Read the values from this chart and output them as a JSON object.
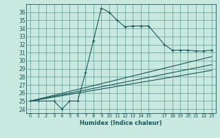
{
  "xlabel": "Humidex (Indice chaleur)",
  "bg_color": "#c8e8e0",
  "grid_color": "#5a9a90",
  "line_color": "#1a5858",
  "xlim": [
    -0.5,
    23.5
  ],
  "ylim": [
    23.5,
    37
  ],
  "yticks": [
    24,
    25,
    26,
    27,
    28,
    29,
    30,
    31,
    32,
    33,
    34,
    35,
    36
  ],
  "xticks": [
    0,
    1,
    2,
    3,
    4,
    5,
    6,
    7,
    8,
    9,
    10,
    11,
    12,
    13,
    14,
    15,
    17,
    18,
    19,
    20,
    21,
    22,
    23
  ],
  "xtick_labels": [
    "0",
    "1",
    "2",
    "3",
    "4",
    "5",
    "6",
    "7",
    "8",
    "9",
    "10",
    "11",
    "12",
    "13",
    "14",
    "15",
    "17",
    "18",
    "19",
    "20",
    "21",
    "22",
    "23"
  ],
  "main_series": {
    "x": [
      0,
      1,
      3,
      4,
      5,
      6,
      7,
      8,
      9,
      10,
      11,
      12,
      13,
      14,
      15,
      17,
      18,
      19,
      20,
      21,
      22,
      23
    ],
    "y": [
      25,
      25,
      25,
      24,
      25,
      25,
      28.5,
      32.5,
      36.5,
      36,
      35,
      34.2,
      34.3,
      34.3,
      34.3,
      32,
      31.3,
      31.3,
      31.3,
      31.2,
      31.2,
      31.3
    ]
  },
  "trend_lines": [
    {
      "x": [
        0,
        23
      ],
      "y": [
        25,
        30.5
      ]
    },
    {
      "x": [
        0,
        23
      ],
      "y": [
        25,
        29.5
      ]
    },
    {
      "x": [
        0,
        23
      ],
      "y": [
        25,
        28.8
      ]
    }
  ]
}
